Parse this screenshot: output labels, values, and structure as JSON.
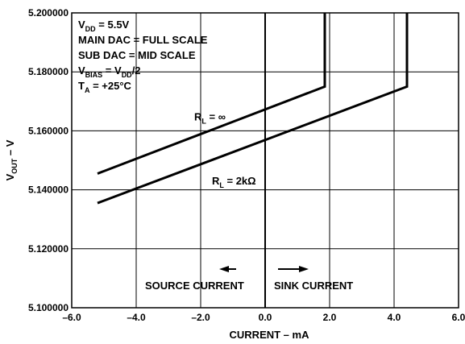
{
  "chart_data": {
    "type": "line",
    "xlabel": "CURRENT – mA",
    "ylabel": {
      "main": "V",
      "sub": "OUT",
      "suffix": " – V"
    },
    "xlim": [
      -6.0,
      6.0
    ],
    "ylim": [
      5.1,
      5.2
    ],
    "x_ticks": [
      -6.0,
      -4.0,
      -2.0,
      0.0,
      2.0,
      4.0,
      6.0
    ],
    "x_tick_labels": [
      "–6.0",
      "–4.0",
      "–2.0",
      "0.0",
      "2.0",
      "4.0",
      "6.0"
    ],
    "y_ticks": [
      5.1,
      5.12,
      5.14,
      5.16,
      5.18,
      5.2
    ],
    "y_tick_labels": [
      "5.100000",
      "5.120000",
      "5.140000",
      "5.160000",
      "5.180000",
      "5.200000"
    ],
    "grid": true,
    "series": [
      {
        "name": "RL = ∞",
        "x": [
          -5.2,
          1.85,
          1.85
        ],
        "y": [
          5.1455,
          5.175,
          5.2
        ]
      },
      {
        "name": "RL = 2kΩ",
        "x": [
          -5.2,
          4.4,
          4.4
        ],
        "y": [
          5.1355,
          5.175,
          5.2
        ]
      }
    ],
    "series_labels": [
      {
        "main": "R",
        "sub": "L",
        "text": " = ∞"
      },
      {
        "main": "R",
        "sub": "L",
        "text": " = 2kΩ"
      }
    ],
    "conditions": [
      [
        {
          "t": "V"
        },
        {
          "t": "DD",
          "sub": true
        },
        {
          "t": " = 5.5V"
        }
      ],
      [
        {
          "t": "MAIN DAC = FULL SCALE"
        }
      ],
      [
        {
          "t": "SUB DAC = MID SCALE"
        }
      ],
      [
        {
          "t": "V"
        },
        {
          "t": "BIAS",
          "sub": true
        },
        {
          "t": " = V"
        },
        {
          "t": "DD",
          "sub": true
        },
        {
          "t": "/2"
        }
      ],
      [
        {
          "t": "T"
        },
        {
          "t": "A",
          "sub": true
        },
        {
          "t": " = +25°C"
        }
      ]
    ],
    "annotations": {
      "source": "SOURCE CURRENT",
      "sink": "SINK CURRENT"
    }
  }
}
